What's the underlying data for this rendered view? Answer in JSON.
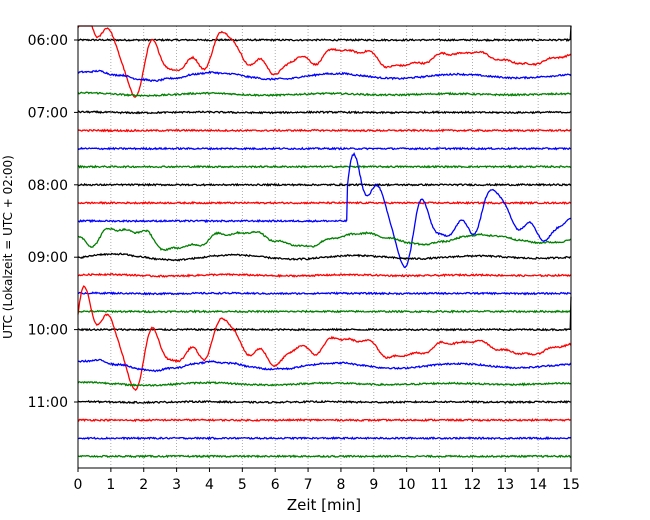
{
  "chart_data": {
    "type": "line",
    "title": "",
    "xlabel": "Zeit  [min]",
    "ylabel": "UTC (Lokalzeit = UTC + 02:00)",
    "xlim": [
      0,
      15
    ],
    "x_ticks": [
      "0",
      "1",
      "2",
      "3",
      "4",
      "5",
      "6",
      "7",
      "8",
      "9",
      "10",
      "11",
      "12",
      "13",
      "14",
      "15"
    ],
    "y_ticks": [
      "06:00",
      "07:00",
      "08:00",
      "09:00",
      "10:00",
      "11:00"
    ],
    "grid": "vertical dotted at each minute",
    "trace_interval_minutes": 15,
    "first_trace_time": "06:00",
    "color_cycle": [
      "#000000",
      "#ff0000",
      "#0000ff",
      "#008000"
    ],
    "trace_count": 24,
    "events": [
      {
        "start_trace": 1,
        "start_min": 0.0,
        "amplitude": 1.0
      },
      {
        "start_trace": 10,
        "start_min": 8.2,
        "amplitude": 1.2
      },
      {
        "start_trace": 17,
        "start_min": 0.0,
        "amplitude": 1.1
      }
    ]
  }
}
